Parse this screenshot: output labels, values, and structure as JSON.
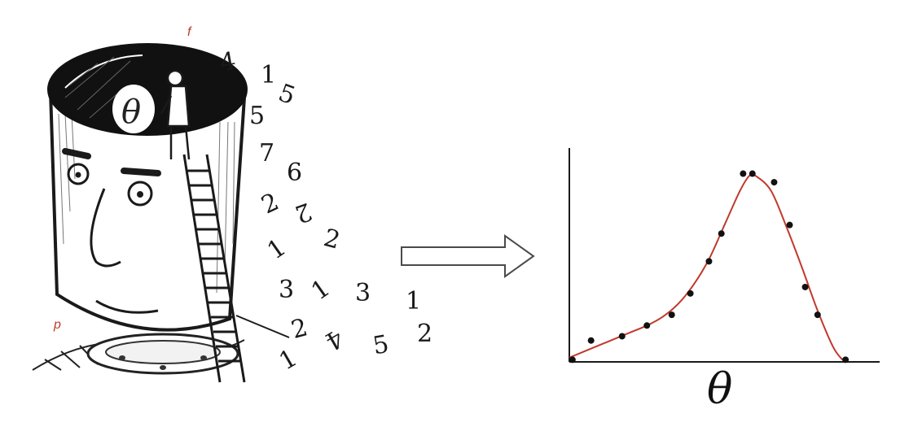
{
  "labels": {
    "f": "f",
    "p": "p",
    "head_symbol": "θ",
    "axis_symbol": "θ"
  },
  "digits": [
    "4",
    "1",
    "5",
    "5",
    "7",
    "6",
    "2",
    "2",
    "1",
    "2",
    "3",
    "1",
    "3",
    "1",
    "2",
    "4",
    "5",
    "2",
    "1"
  ],
  "colors": {
    "curve": "#c0392b",
    "points": "#111111",
    "label_red": "#c0392b",
    "ink": "#1a1a1a"
  },
  "chart_data": {
    "type": "scatter",
    "title": "",
    "xlabel": "θ",
    "ylabel": "",
    "xlim": [
      0,
      10
    ],
    "ylim": [
      0,
      1
    ],
    "grid": false,
    "legend": "none",
    "series": [
      {
        "type": "scatter",
        "x": [
          0.1,
          0.7,
          1.7,
          2.5,
          3.3,
          3.9,
          4.5,
          4.9,
          5.6,
          5.9,
          6.6,
          7.1,
          7.6,
          8.0,
          8.9
        ],
        "y": [
          0.01,
          0.1,
          0.12,
          0.17,
          0.22,
          0.32,
          0.47,
          0.6,
          0.88,
          0.88,
          0.84,
          0.64,
          0.35,
          0.22,
          0.01
        ]
      },
      {
        "type": "line",
        "x": [
          0.0,
          0.5,
          1.0,
          1.5,
          2.0,
          2.5,
          3.0,
          3.5,
          4.0,
          4.5,
          5.0,
          5.5,
          5.8,
          6.0,
          6.5,
          7.0,
          7.5,
          8.0,
          8.5,
          8.8
        ],
        "y": [
          0.02,
          0.05,
          0.08,
          0.11,
          0.14,
          0.17,
          0.21,
          0.27,
          0.36,
          0.48,
          0.64,
          0.8,
          0.87,
          0.87,
          0.8,
          0.63,
          0.44,
          0.24,
          0.07,
          0.01
        ]
      }
    ]
  }
}
